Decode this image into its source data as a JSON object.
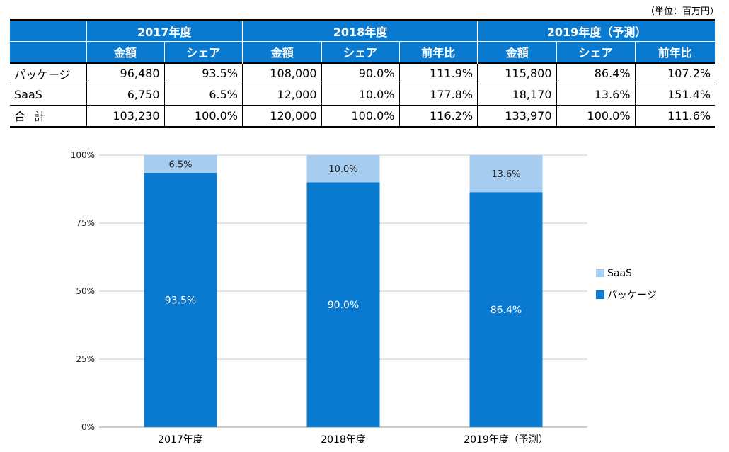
{
  "unit_note": "（単位：百万円）",
  "table": {
    "years": [
      "2017年度",
      "2018年度",
      "2019年度（予測）"
    ],
    "subheaders": [
      "金額",
      "シェア",
      "金額",
      "シェア",
      "前年比",
      "金額",
      "シェア",
      "前年比"
    ],
    "rows": [
      {
        "label": "パッケージ",
        "cells": [
          "96,480",
          "93.5%",
          "108,000",
          "90.0%",
          "111.9%",
          "115,800",
          "86.4%",
          "107.2%"
        ]
      },
      {
        "label": "SaaS",
        "cells": [
          "6,750",
          "6.5%",
          "12,000",
          "10.0%",
          "177.8%",
          "18,170",
          "13.6%",
          "151.4%"
        ]
      },
      {
        "label": "合計",
        "cells": [
          "103,230",
          "100.0%",
          "120,000",
          "100.0%",
          "116.2%",
          "133,970",
          "100.0%",
          "111.6%"
        ]
      }
    ]
  },
  "colors": {
    "header_bg": "#0a7ad1",
    "package": "#0a7ad1",
    "saas": "#a6cdef"
  },
  "chart_data": {
    "type": "bar",
    "stacked": true,
    "categories": [
      "2017年度",
      "2018年度",
      "2019年度（予測）"
    ],
    "series": [
      {
        "name": "パッケージ",
        "values": [
          93.5,
          90.0,
          86.4
        ],
        "labels": [
          "93.5%",
          "90.0%",
          "86.4%"
        ],
        "color": "#0a7ad1"
      },
      {
        "name": "SaaS",
        "values": [
          6.5,
          10.0,
          13.6
        ],
        "labels": [
          "6.5%",
          "10.0%",
          "13.6%"
        ],
        "color": "#a6cdef"
      }
    ],
    "ylim": [
      0,
      100
    ],
    "yticks": [
      "0%",
      "25%",
      "50%",
      "75%",
      "100%"
    ],
    "grid": true,
    "legend": "right"
  }
}
